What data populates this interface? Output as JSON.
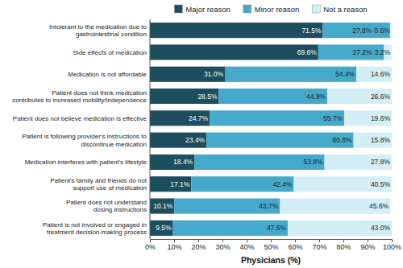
{
  "chart_data": {
    "type": "bar",
    "orientation": "horizontal",
    "stacked": true,
    "data_labels": true,
    "grid": false,
    "legend": "top",
    "x_label": "Physicians (%)",
    "categories": [
      "Intolerant to the medication due to\ngastrointestinal condition",
      "Side effects of medication",
      "Medication is not affordable",
      "Patient does not think medication\ncontributes to increased mobility/independence",
      "Patient does not believe medication is effective",
      "Patient is following provider's instructions to\ndiscontinue medication",
      "Medication interferes with patient's lifestyle",
      "Patient's family and friends do not\nsupport use of medication",
      "Patient does not understand\ndosing instructions",
      "Patient is not involved or engaged in\ntreatment decision-making process"
    ],
    "series": [
      {
        "name": "Major reason",
        "color": "#1d4e5e",
        "values": [
          71.5,
          69.6,
          31.0,
          28.5,
          24.7,
          23.4,
          18.4,
          17.1,
          10.1,
          9.5
        ],
        "value_labels": [
          "71.5%",
          "69.6%",
          "31.0%",
          "28.5%",
          "24.7%",
          "23.4%",
          "18.4%",
          "17.1%",
          "10.1%",
          "9.5%"
        ]
      },
      {
        "name": "Minor reason",
        "color": "#45a9cc",
        "values": [
          27.8,
          27.2,
          54.4,
          44.9,
          55.7,
          60.8,
          53.8,
          42.4,
          43.7,
          47.5
        ],
        "value_labels": [
          "27.8%",
          "27.2%",
          "54.4%",
          "44.9%",
          "55.7%",
          "60.8%",
          "53.8%",
          "42.4%",
          "43.7%",
          "47.5%"
        ]
      },
      {
        "name": "Not a reason",
        "color": "#d4eef6",
        "values": [
          0.6,
          3.2,
          14.6,
          26.6,
          19.6,
          15.8,
          27.8,
          40.5,
          45.6,
          43.0
        ],
        "value_labels": [
          "0.6%",
          "3.2%",
          "14.6%",
          "26.6%",
          "19.6%",
          "15.8%",
          "27.8%",
          "40.5%",
          "45.6%",
          "43.0%"
        ]
      }
    ],
    "xlim": [
      0,
      100
    ],
    "xticks": [
      {
        "value": 0,
        "label": "0%"
      },
      {
        "value": 10,
        "label": "10%"
      },
      {
        "value": 20,
        "label": "20%"
      },
      {
        "value": 30,
        "label": "30%"
      },
      {
        "value": 40,
        "label": "40%"
      },
      {
        "value": 50,
        "label": "50%"
      },
      {
        "value": 60,
        "label": "60%"
      },
      {
        "value": 70,
        "label": "70%"
      },
      {
        "value": 80,
        "label": "80%"
      },
      {
        "value": 90,
        "label": "90%"
      },
      {
        "value": 100,
        "label": "100%"
      }
    ]
  }
}
